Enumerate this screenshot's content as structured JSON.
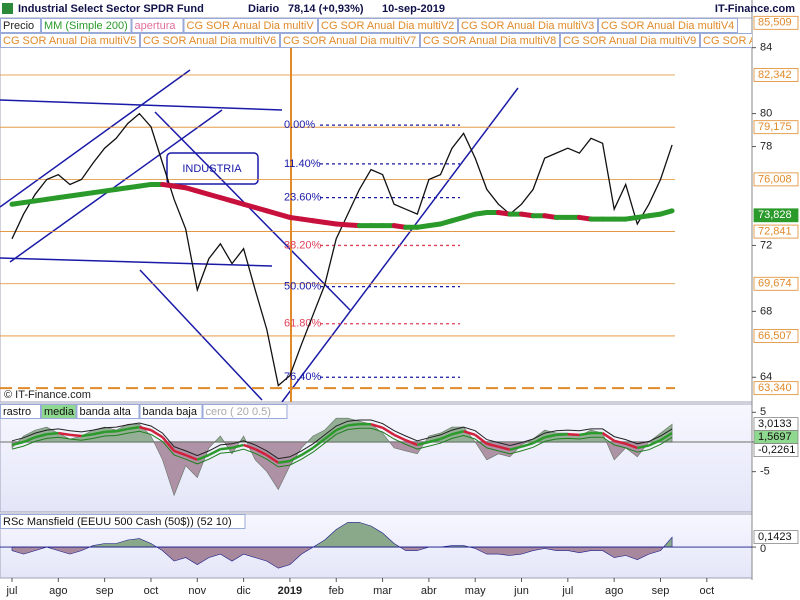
{
  "chart_data": [
    {
      "type": "line",
      "title": "Industrial Select Sector SPDR Fund",
      "period": "Diario",
      "last": "78,14 (+0,93%)",
      "date": "10-sep-2019",
      "source": "IT-Finance.com",
      "copyright": "© IT-Finance.com",
      "annotation": "INDUSTRIA",
      "categories": [
        "jul",
        null,
        null,
        null,
        "ago",
        null,
        null,
        null,
        "sep",
        null,
        null,
        null,
        "oct",
        null,
        null,
        null,
        "nov",
        null,
        null,
        null,
        "dic",
        null,
        null,
        null,
        "2019",
        null,
        null,
        null,
        "feb",
        null,
        null,
        null,
        "mar",
        null,
        null,
        null,
        "abr",
        null,
        null,
        null,
        "may",
        null,
        null,
        null,
        "jun",
        null,
        null,
        null,
        "jul",
        null,
        null,
        null,
        "ago",
        null,
        null,
        null,
        "sep",
        null,
        null,
        null,
        "oct"
      ],
      "series": [
        {
          "name": "Precio",
          "color": "#111111",
          "values": [
            72.4,
            73.9,
            75.1,
            76.0,
            76.3,
            75.7,
            76.0,
            77.0,
            77.9,
            78.5,
            79.4,
            80.0,
            79.2,
            77.0,
            74.8,
            73.0,
            69.3,
            71.2,
            72.1,
            70.9,
            71.8,
            69.3,
            66.9,
            63.5,
            64.1,
            66.0,
            67.8,
            69.6,
            72.4,
            73.9,
            75.4,
            76.6,
            76.3,
            74.5,
            74.2,
            73.9,
            76.0,
            76.3,
            77.9,
            78.8,
            77.3,
            75.4,
            74.5,
            73.9,
            74.5,
            75.4,
            77.3,
            77.6,
            77.9,
            77.6,
            78.5,
            78.2,
            74.2,
            75.7,
            73.3,
            74.5,
            76.0,
            78.1,
            null,
            null,
            null
          ]
        },
        {
          "name": "MM (Simple 200)",
          "color": "#2a9a2a",
          "down_color": "#c8103c",
          "values": [
            74.5,
            74.6,
            74.7,
            74.8,
            74.9,
            75.0,
            75.1,
            75.2,
            75.3,
            75.4,
            75.5,
            75.6,
            75.7,
            75.7,
            75.6,
            75.5,
            75.3,
            75.1,
            74.9,
            74.7,
            74.5,
            74.3,
            74.1,
            73.9,
            73.7,
            73.6,
            73.5,
            73.4,
            73.3,
            73.25,
            73.2,
            73.2,
            73.2,
            73.2,
            73.1,
            73.1,
            73.2,
            73.3,
            73.5,
            73.7,
            73.9,
            74.0,
            74.0,
            73.9,
            73.9,
            73.8,
            73.8,
            73.7,
            73.7,
            73.7,
            73.6,
            73.6,
            73.6,
            73.6,
            73.7,
            73.8,
            73.9,
            74.1,
            null,
            null,
            null
          ]
        }
      ],
      "legend_extra": [
        {
          "label": "apertura",
          "color": "#e0709a"
        },
        {
          "label": "CG SOR Anual Dia multiV",
          "color": "#e08a2a"
        },
        {
          "label": "CG SOR Anual Dia multiV2",
          "color": "#e08a2a"
        },
        {
          "label": "CG SOR Anual Dia multiV3",
          "color": "#e08a2a"
        },
        {
          "label": "CG SOR Anual Dia multiV4",
          "color": "#e08a2a"
        },
        {
          "label": "CG SOR Anual Dia multiV5",
          "color": "#e08a2a"
        },
        {
          "label": "CG SOR Anual Dia multiV6",
          "color": "#e08a2a"
        },
        {
          "label": "CG SOR Anual Dia multiV7",
          "color": "#e08a2a"
        },
        {
          "label": "CG SOR Anual Dia multiV8",
          "color": "#e08a2a"
        },
        {
          "label": "CG SOR Anual Dia multiV9",
          "color": "#e08a2a"
        },
        {
          "label": "CG SOR Anual Dia",
          "color": "#e08a2a"
        }
      ],
      "levels": [
        {
          "value": 85.509,
          "label": "85,509"
        },
        {
          "value": 82.342,
          "label": "82,342"
        },
        {
          "value": 79.175,
          "label": "79,175"
        },
        {
          "value": 76.008,
          "label": "76,008"
        },
        {
          "value": 72.841,
          "label": "72,841"
        },
        {
          "value": 69.674,
          "label": "69,674"
        },
        {
          "value": 66.507,
          "label": "66,507"
        },
        {
          "value": 63.34,
          "label": "63,340"
        }
      ],
      "level_color": "#e08a2a",
      "mm_last": {
        "value": 73.828,
        "label": "73,828"
      },
      "fibonacci": [
        {
          "value": 79.3,
          "label": "0.00%",
          "color": "#1a1aa8"
        },
        {
          "value": 76.95,
          "label": "11.40%",
          "color": "#1a1aa8"
        },
        {
          "value": 74.9,
          "label": "23.60%",
          "color": "#1a1aa8"
        },
        {
          "value": 72.0,
          "label": "38.20%",
          "color": "#e0405a"
        },
        {
          "value": 69.5,
          "label": "50.00%",
          "color": "#1a1aa8"
        },
        {
          "value": 67.25,
          "label": "61.80%",
          "color": "#e0405a"
        },
        {
          "value": 64.0,
          "label": "76.40%",
          "color": "#1a1aa8"
        }
      ],
      "ylim": [
        62.5,
        85.8
      ],
      "yticks": [
        64,
        68,
        72,
        78,
        80,
        84
      ],
      "grid": false
    },
    {
      "type": "oscillator",
      "series": [
        {
          "name": "rastro",
          "color": "#8aa88a",
          "down_color": "#a8889c",
          "values": [
            -1,
            1,
            2,
            2.5,
            1.5,
            0.5,
            1,
            2,
            2.5,
            2,
            3,
            3,
            1,
            -3,
            -9,
            -4,
            -6,
            -1,
            1,
            -2,
            1,
            -3,
            -5,
            -8,
            -4,
            -1,
            1,
            2,
            4,
            4,
            3.5,
            3,
            1.5,
            -1,
            -1.5,
            -2,
            1,
            1.5,
            2.5,
            2.5,
            0,
            -3,
            -2,
            -2.5,
            -0.5,
            0.5,
            2,
            1.5,
            1.5,
            1,
            2,
            1.5,
            -3,
            -1,
            -2.5,
            0,
            1.5,
            3
          ]
        },
        {
          "name": "media",
          "color": "#2a9a2a",
          "down_color": "#d0203c",
          "values": [
            -0.5,
            0,
            0.8,
            1.3,
            1.5,
            1.2,
            1.0,
            1.3,
            1.7,
            1.8,
            2.2,
            2.5,
            2.0,
            0.8,
            -1.5,
            -2.2,
            -3.0,
            -2.2,
            -1.2,
            -1.0,
            -0.5,
            -1.2,
            -2.2,
            -3.5,
            -3.2,
            -2.2,
            -1.0,
            0.5,
            2.0,
            2.8,
            3.0,
            3.0,
            2.4,
            1.2,
            0.3,
            -0.5,
            0.0,
            0.5,
            1.3,
            1.8,
            1.2,
            -0.3,
            -0.8,
            -1.3,
            -0.8,
            -0.2,
            0.8,
            1.2,
            1.3,
            1.2,
            1.5,
            1.5,
            0.2,
            -0.3,
            -1.0,
            -0.6,
            0.3,
            1.5
          ]
        },
        {
          "name": "banda alta",
          "color": "#222222",
          "values": [
            0.2,
            0.7,
            1.5,
            2.0,
            2.2,
            1.9,
            1.7,
            2.0,
            2.4,
            2.5,
            2.9,
            3.2,
            2.7,
            1.5,
            -0.8,
            -1.5,
            -2.3,
            -1.5,
            -0.5,
            -0.3,
            0.2,
            -0.5,
            -1.5,
            -2.8,
            -2.5,
            -1.5,
            -0.3,
            1.2,
            2.7,
            3.5,
            3.7,
            3.7,
            3.1,
            1.9,
            1.0,
            0.2,
            0.7,
            1.2,
            2.0,
            2.5,
            1.9,
            0.4,
            -0.1,
            -0.6,
            -0.1,
            0.5,
            1.5,
            1.9,
            2.0,
            1.9,
            2.2,
            2.2,
            0.9,
            0.4,
            -0.3,
            0.1,
            1.0,
            2.2
          ]
        },
        {
          "name": "banda baja",
          "color": "#1f7f1f",
          "values": [
            -1.2,
            -0.7,
            0.1,
            0.6,
            0.8,
            0.5,
            0.3,
            0.6,
            1.0,
            1.1,
            1.5,
            1.8,
            1.3,
            0.1,
            -2.2,
            -2.9,
            -3.7,
            -2.9,
            -1.9,
            -1.7,
            -1.2,
            -1.9,
            -2.9,
            -4.2,
            -3.9,
            -2.9,
            -1.7,
            -0.2,
            1.3,
            2.1,
            2.3,
            2.3,
            1.7,
            0.5,
            -0.4,
            -1.2,
            -0.7,
            -0.2,
            0.6,
            1.1,
            0.5,
            -1.0,
            -1.5,
            -2.0,
            -1.5,
            -0.9,
            0.1,
            0.5,
            0.6,
            0.5,
            0.8,
            0.8,
            -0.5,
            -1.0,
            -1.7,
            -1.3,
            -0.4,
            0.8
          ]
        }
      ],
      "zero_line": {
        "name": "cero ( 20 0.5)",
        "value": 0,
        "color": "#9a9a9a"
      },
      "value_labels": [
        {
          "value": 3.0133,
          "label": "3,0133",
          "color": "#ffffff"
        },
        {
          "value": 1.5697,
          "label": "1,5697",
          "color": "#8fd88f"
        },
        {
          "value": -0.2261,
          "label": "-0,2261",
          "color": "#ffffff"
        }
      ],
      "ylim": [
        -11.8,
        6.4
      ],
      "yticks": [
        -5,
        0,
        5
      ]
    },
    {
      "type": "area",
      "title": "RSc Mansfield (EEUU 500 Cash (50$)) (52 10)",
      "series": [
        {
          "name": "RSc Mansfield",
          "color": "#8aa88a",
          "down_color": "#a8889c",
          "line_color": "#1a1a8a",
          "values": [
            -0.05,
            -0.1,
            -0.05,
            0,
            -0.05,
            -0.1,
            -0.05,
            0.02,
            0.05,
            0.05,
            0.1,
            0.12,
            0.05,
            -0.05,
            -0.2,
            -0.15,
            -0.25,
            -0.15,
            -0.1,
            -0.2,
            -0.1,
            -0.15,
            -0.2,
            -0.3,
            -0.25,
            -0.1,
            0,
            0.1,
            0.25,
            0.35,
            0.35,
            0.3,
            0.2,
            0.05,
            -0.05,
            -0.05,
            0,
            0,
            0.02,
            0.02,
            -0.02,
            -0.1,
            -0.1,
            -0.12,
            -0.1,
            -0.05,
            -0.02,
            -0.05,
            -0.05,
            -0.08,
            -0.05,
            -0.05,
            -0.15,
            -0.12,
            -0.18,
            -0.1,
            -0.05,
            0.14
          ]
        }
      ],
      "last_label": {
        "value": 0.1423,
        "label": "0,1423"
      },
      "ylim": [
        -0.44,
        0.47
      ],
      "yticks": [
        0
      ]
    }
  ]
}
